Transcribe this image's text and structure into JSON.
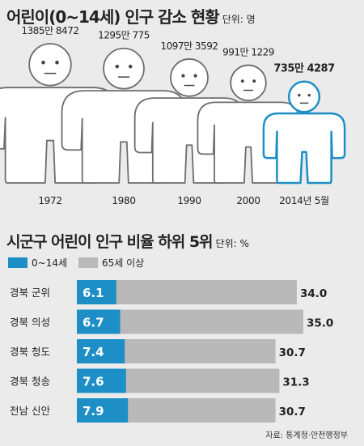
{
  "header": {
    "title": "어린이(0~14세) 인구 감소 현황",
    "unit": "단위: 명"
  },
  "section2": {
    "title": "시군구 어린이 인구 비율 하위 5위",
    "unit": "단위: %"
  },
  "source": "자료: 통계청·안전행정부",
  "colors": {
    "child": "#1e8fc6",
    "elderly": "#b9b9b9",
    "figure_outline": "#6d6d6d",
    "background": "#ebebeb"
  },
  "chart_data": [
    {
      "type": "bar",
      "title": "어린이(0~14세) 인구 감소 현황",
      "unit": "단위: 명",
      "categories": [
        "1972",
        "1980",
        "1990",
        "2000",
        "2014년 5월"
      ],
      "values": [
        13858472,
        12950775,
        10973592,
        9911229,
        7354287
      ],
      "value_labels": [
        "1385만 8472",
        "1295만 775",
        "1097만 3592",
        "991만 1229",
        "735만 4287"
      ],
      "highlight_index": 4
    },
    {
      "type": "bar",
      "orientation": "horizontal",
      "title": "시군구 어린이 인구 비율 하위 5위",
      "unit": "단위: %",
      "categories": [
        "경북 군위",
        "경북 의성",
        "경북 청도",
        "경북 청송",
        "전남 신안"
      ],
      "series": [
        {
          "name": "0~14세",
          "values": [
            6.1,
            6.7,
            7.4,
            7.6,
            7.9
          ]
        },
        {
          "name": "65세 이상",
          "values": [
            34.0,
            35.0,
            30.7,
            31.3,
            30.7
          ]
        }
      ],
      "value_labels": {
        "child": [
          "6.1",
          "6.7",
          "7.4",
          "7.6",
          "7.9"
        ],
        "elderly": [
          "34.0",
          "35.0",
          "30.7",
          "31.3",
          "30.7"
        ]
      },
      "xlim": [
        0,
        35
      ]
    }
  ]
}
